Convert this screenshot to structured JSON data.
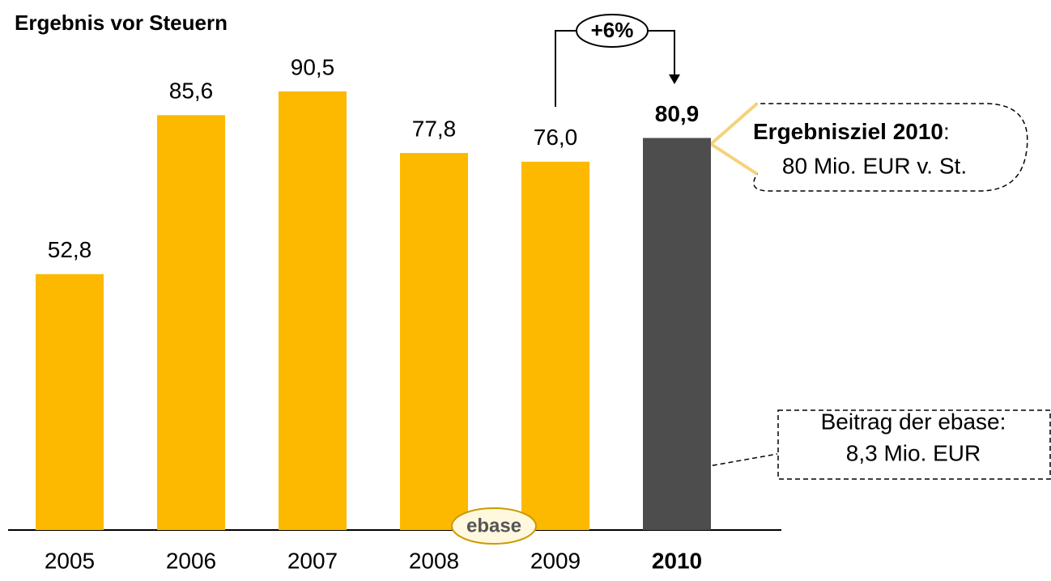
{
  "chart_data": {
    "type": "bar",
    "title": "Ergebnis vor Steuern",
    "categories": [
      "2005",
      "2006",
      "2007",
      "2008",
      "2009",
      "2010"
    ],
    "values": [
      52.8,
      85.6,
      90.5,
      77.8,
      76.0,
      80.9
    ],
    "value_labels": [
      "52,8",
      "85,6",
      "90,5",
      "77,8",
      "76,0",
      "80,9"
    ],
    "colors": [
      "#fcb900",
      "#fcb900",
      "#fcb900",
      "#fcb900",
      "#fcb900",
      "#4d4d4d"
    ],
    "annotations": {
      "growth": "+6%",
      "target_title": "Ergebnisziel 2010",
      "target_colon": ":",
      "target_text": "80 Mio. EUR v. St.",
      "contribution_line1": "Beitrag der ebase:",
      "contribution_line2": "8,3 Mio. EUR",
      "logo": "ebase"
    }
  }
}
